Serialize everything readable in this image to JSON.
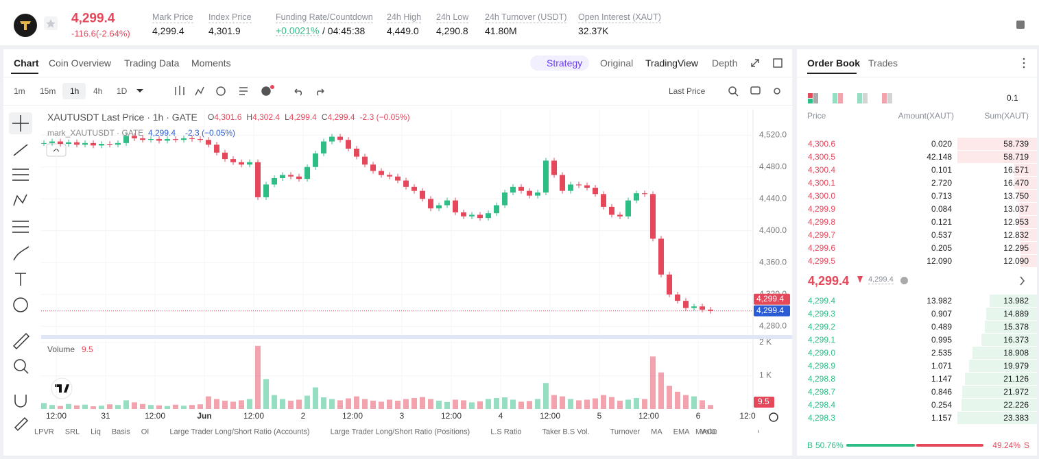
{
  "header": {
    "last_price": "4,299.4",
    "change": "-116.6(-2.64%)",
    "stats": [
      {
        "label": "Mark Price",
        "value": "4,299.4"
      },
      {
        "label": "Index Price",
        "value": "4,301.9"
      },
      {
        "label": "Funding Rate/Countdown",
        "value": "+0.0021%",
        "extra": "/ 04:45:38"
      },
      {
        "label": "24h High",
        "value": "4,449.0"
      },
      {
        "label": "24h Low",
        "value": "4,290.8"
      },
      {
        "label": "24h Turnover (USDT)",
        "value": "41.80M"
      },
      {
        "label": "Open Interest (XAUT)",
        "value": "32.37K"
      }
    ]
  },
  "chart_tabs": [
    "Chart",
    "Coin Overview",
    "Trading Data",
    "Moments"
  ],
  "view_tabs": [
    "Strategy",
    "Original",
    "TradingView",
    "Depth"
  ],
  "timeframes": [
    "1m",
    "15m",
    "1h",
    "4h",
    "1D"
  ],
  "price_source": "Last Price",
  "indicators": [
    "LPVR",
    "SRL",
    "Liq",
    "Basis",
    "OI",
    "Large Trader Long/Short Ratio (Accounts)",
    "Large Trader Long/Short Ratio (Positions)",
    "L.S Ratio",
    "Taker B.S Vol.",
    "Turnover",
    "MA",
    "EMA",
    "Volume",
    "MACD"
  ],
  "chart_data": [
    {
      "type": "candlestick",
      "title": "XAUTUSDT Last Price · 1h · GATE",
      "ohlc": [
        {
          "label": "O",
          "value": "4,301.6"
        },
        {
          "label": "H",
          "value": "4,302.4"
        },
        {
          "label": "L",
          "value": "4,299.4"
        },
        {
          "label": "C",
          "value": "4,299.4"
        }
      ],
      "change": "-2.3 (−0.05%)",
      "mark_legend": {
        "name": "mark_XAUTUSDT · GATE",
        "value": "4,299.4",
        "change": "-2.3 (−0.05%)"
      },
      "x": [
        -3,
        -1,
        1,
        3,
        5,
        7,
        9,
        11,
        13,
        15,
        17,
        19,
        21,
        23,
        25,
        27,
        29,
        31,
        33,
        35,
        37,
        39,
        41,
        43,
        45,
        47,
        49,
        51,
        53,
        55,
        57,
        59,
        61,
        63,
        65,
        67,
        69,
        71,
        73,
        75,
        77,
        79,
        81,
        83,
        85,
        87,
        89,
        91,
        93,
        95,
        97,
        99,
        101,
        103,
        105,
        107,
        109,
        111,
        113,
        115,
        117,
        119,
        121,
        123,
        125,
        127,
        129,
        131,
        133,
        135,
        137,
        139,
        141,
        143,
        145,
        147,
        149,
        151,
        153,
        155,
        157,
        159
      ],
      "values": [
        4510,
        4512,
        4509,
        4511,
        4508,
        4510,
        4507,
        4509,
        4508,
        4510,
        4519,
        4516,
        4514,
        4515,
        4513,
        4515,
        4514,
        4516,
        4515,
        4514,
        4508,
        4498,
        4490,
        4486,
        4483,
        4486,
        4442,
        4458,
        4466,
        4470,
        4468,
        4465,
        4480,
        4497,
        4512,
        4518,
        4514,
        4503,
        4493,
        4483,
        4475,
        4470,
        4468,
        4463,
        4455,
        4450,
        4440,
        4428,
        4432,
        4438,
        4423,
        4418,
        4420,
        4416,
        4422,
        4432,
        4448,
        4455,
        4450,
        4444,
        4448,
        4488,
        4470,
        4450,
        4458,
        4457,
        4454,
        4446,
        4430,
        4420,
        4418,
        4438,
        4447,
        4446,
        4390,
        4345,
        4320,
        4312,
        4303,
        4305,
        4301,
        4299.4
      ],
      "up_color": "#2ebd85",
      "down_color": "#e5475b",
      "xlim": [
        -3.67,
        169.33
      ],
      "xticks": [
        {
          "value": 0,
          "label": "12:00"
        },
        {
          "value": 12,
          "label": "31"
        },
        {
          "value": 24,
          "label": "12:00"
        },
        {
          "value": 36,
          "label": "Jun"
        },
        {
          "value": 48,
          "label": "12:00"
        },
        {
          "value": 60,
          "label": "2"
        },
        {
          "value": 72,
          "label": "12:00"
        },
        {
          "value": 84,
          "label": "3"
        },
        {
          "value": 96,
          "label": "12:00"
        },
        {
          "value": 108,
          "label": "4"
        },
        {
          "value": 120,
          "label": "12:00"
        },
        {
          "value": 132,
          "label": "5"
        },
        {
          "value": 144,
          "label": "12:00"
        },
        {
          "value": 156,
          "label": "6"
        },
        {
          "value": 168,
          "label": "12:0"
        }
      ],
      "ylim": [
        4270,
        4552
      ],
      "yticks": [
        {
          "value": 4280,
          "label": "4,280.0"
        },
        {
          "value": 4320,
          "label": "4,320.0"
        },
        {
          "value": 4360,
          "label": "4,360.0"
        },
        {
          "value": 4400,
          "label": "4,400.0"
        },
        {
          "value": 4440,
          "label": "4,440.0"
        },
        {
          "value": 4480,
          "label": "4,480.0"
        },
        {
          "value": 4520,
          "label": "4,520.0"
        }
      ],
      "grid": true,
      "price_tags": [
        {
          "value": 4299.4,
          "label": "4,299.4",
          "color": "#e5475b"
        },
        {
          "value": 4299.4,
          "label": "4,299.4",
          "color": "#2b5cd6"
        }
      ]
    },
    {
      "type": "bar",
      "title": "Volume",
      "current": "9.5",
      "values": [
        180,
        120,
        90,
        150,
        110,
        130,
        80,
        100,
        140,
        120,
        260,
        200,
        150,
        120,
        110,
        90,
        130,
        100,
        120,
        140,
        380,
        300,
        250,
        220,
        260,
        300,
        1900,
        900,
        420,
        300,
        250,
        280,
        400,
        650,
        350,
        300,
        260,
        320,
        380,
        300,
        250,
        220,
        280,
        250,
        300,
        330,
        360,
        300,
        250,
        210,
        280,
        260,
        200,
        230,
        300,
        330,
        350,
        280,
        220,
        240,
        300,
        780,
        420,
        380,
        300,
        260,
        280,
        320,
        420,
        360,
        250,
        280,
        330,
        300,
        1580,
        1100,
        700,
        520,
        420,
        380,
        260,
        120
      ],
      "ylim": [
        0,
        2000
      ],
      "yticks": [
        {
          "value": 1000,
          "label": "1 K"
        },
        {
          "value": 2000,
          "label": "2 K"
        }
      ]
    }
  ],
  "order_book": {
    "tabs": [
      "Order Book",
      "Trades"
    ],
    "precision": "0.1",
    "columns": [
      "Price",
      "Amount(XAUT)",
      "Sum(XAUT)"
    ],
    "asks": [
      [
        "4,300.6",
        "0.020",
        "58.739"
      ],
      [
        "4,300.5",
        "42.148",
        "58.719"
      ],
      [
        "4,300.4",
        "0.101",
        "16.571"
      ],
      [
        "4,300.1",
        "2.720",
        "16.470"
      ],
      [
        "4,300.0",
        "0.713",
        "13.750"
      ],
      [
        "4,299.9",
        "0.084",
        "13.037"
      ],
      [
        "4,299.8",
        "0.121",
        "12.953"
      ],
      [
        "4,299.7",
        "0.537",
        "12.832"
      ],
      [
        "4,299.6",
        "0.205",
        "12.295"
      ],
      [
        "4,299.5",
        "12.090",
        "12.090"
      ]
    ],
    "mid_price": "4,299.4",
    "mark_price": "4,299.4",
    "bids": [
      [
        "4,299.4",
        "13.982",
        "13.982"
      ],
      [
        "4,299.3",
        "0.907",
        "14.889"
      ],
      [
        "4,299.2",
        "0.489",
        "15.378"
      ],
      [
        "4,299.1",
        "0.995",
        "16.373"
      ],
      [
        "4,299.0",
        "2.535",
        "18.908"
      ],
      [
        "4,298.9",
        "1.071",
        "19.979"
      ],
      [
        "4,298.8",
        "1.147",
        "21.126"
      ],
      [
        "4,298.7",
        "0.846",
        "21.972"
      ],
      [
        "4,298.4",
        "0.254",
        "22.226"
      ],
      [
        "4,298.3",
        "1.157",
        "23.383"
      ]
    ],
    "ratio": {
      "buy_label": "B",
      "buy": "50.76%",
      "sell": "49.24%",
      "sell_label": "S"
    }
  }
}
